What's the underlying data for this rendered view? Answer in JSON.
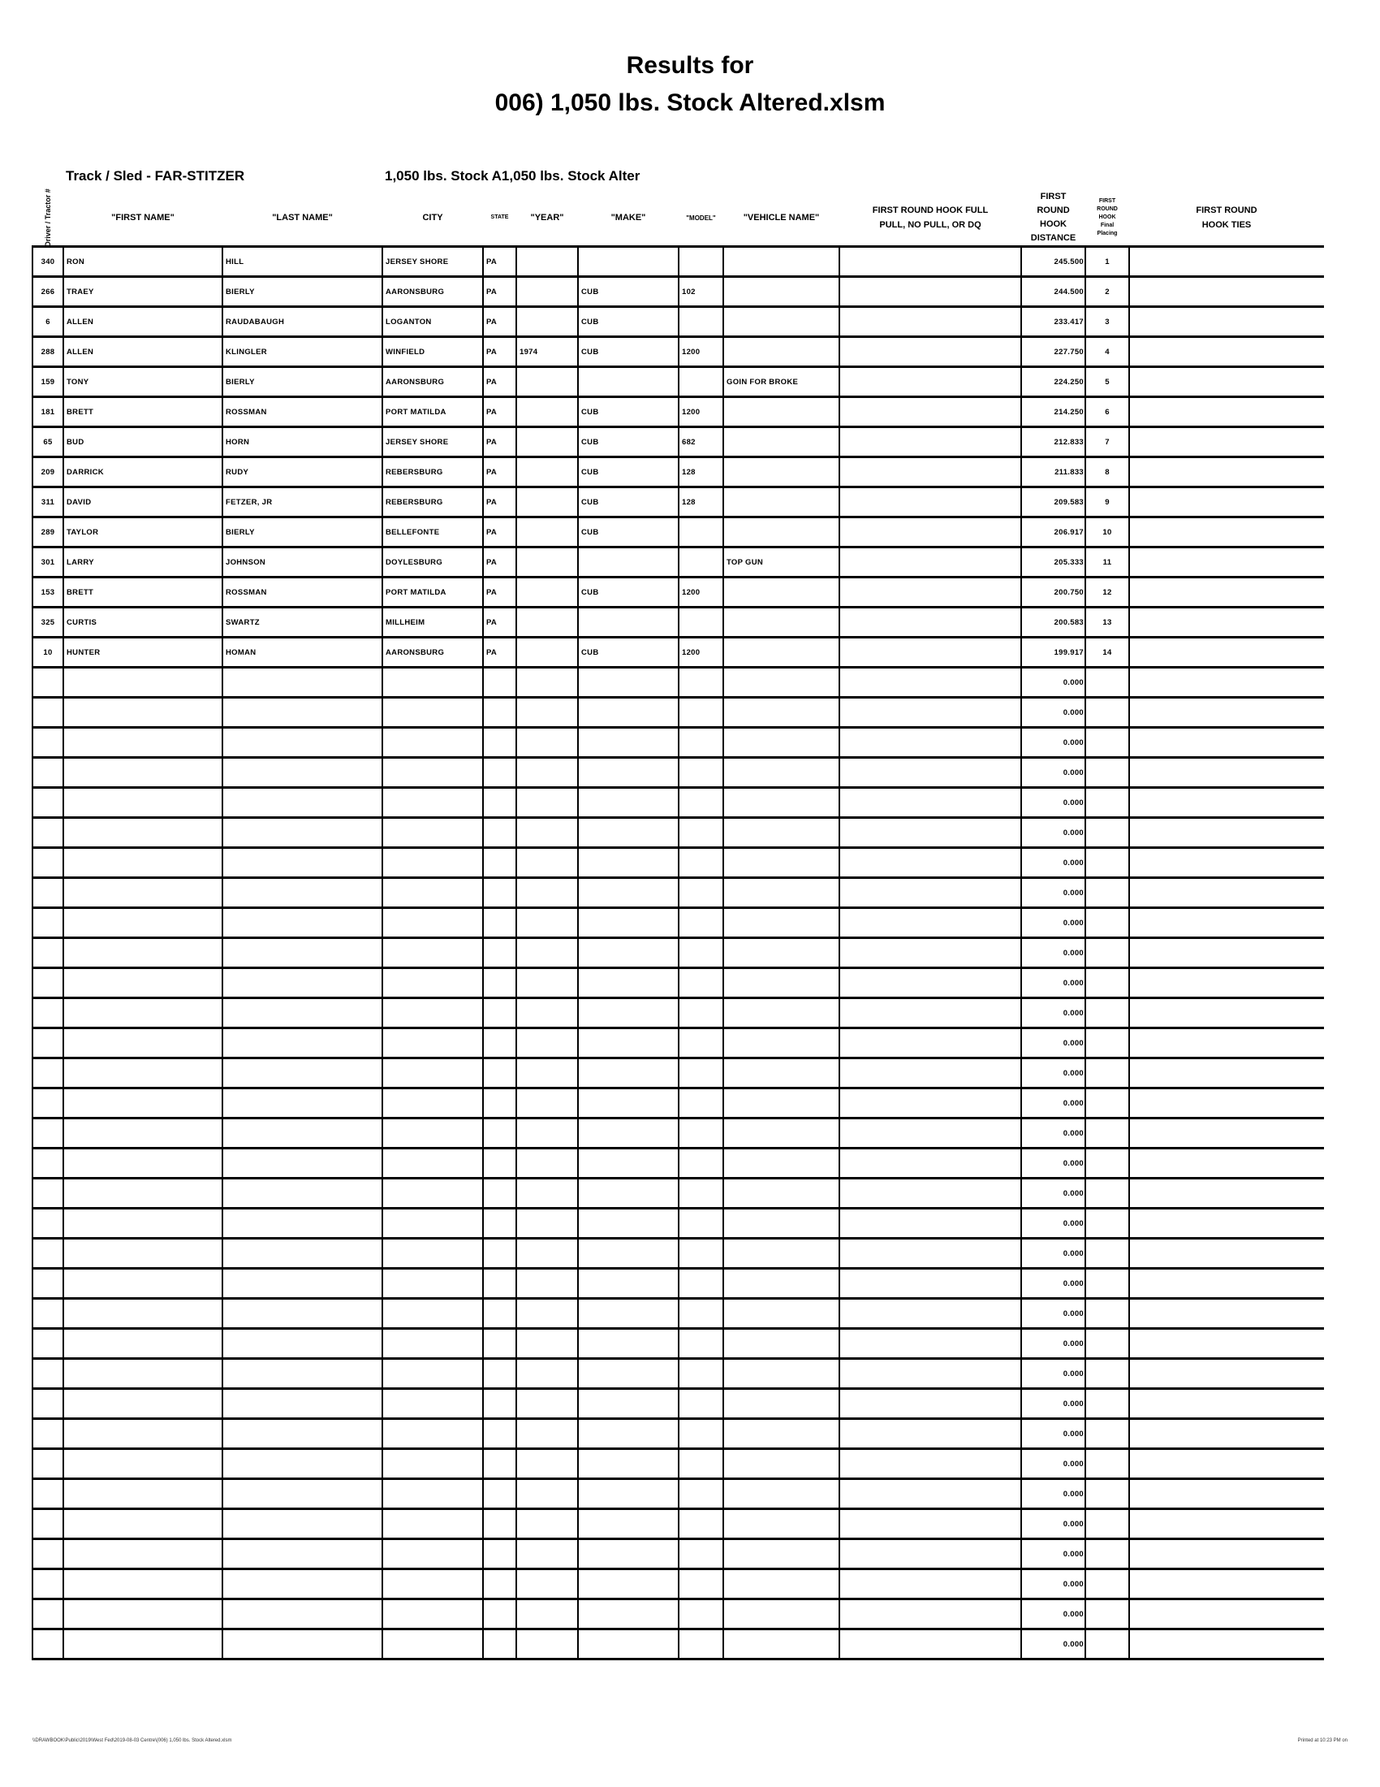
{
  "title_line1": "Results for",
  "title_line2": "006) 1,050 lbs. Stock Altered.xlsm",
  "track_sled": "Track / Sled - FAR-STITZER",
  "class_label": "1,050 lbs. Stock A1,050 lbs. Stock Alter",
  "columns": [
    "Driver / Tractor #",
    "\"FIRST NAME\"",
    "\"LAST NAME\"",
    "CITY",
    "STATE",
    "\"YEAR\"",
    "\"MAKE\"",
    "\"MODEL\"",
    "\"VEHICLE NAME\"",
    "FIRST ROUND HOOK FULL PULL, NO PULL, OR DQ",
    "FIRST ROUND HOOK DISTANCE",
    "FIRST ROUND HOOK Final Placing",
    "FIRST ROUND HOOK TIES"
  ],
  "rows": [
    [
      "340",
      "RON",
      "HILL",
      "JERSEY SHORE",
      "PA",
      "",
      "",
      "",
      "",
      "",
      "245.500",
      "1",
      ""
    ],
    [
      "266",
      "TRAEY",
      "BIERLY",
      "AARONSBURG",
      "PA",
      "",
      "CUB",
      "102",
      "",
      "",
      "244.500",
      "2",
      ""
    ],
    [
      "6",
      "ALLEN",
      "RAUDABAUGH",
      "LOGANTON",
      "PA",
      "",
      "CUB",
      "",
      "",
      "",
      "233.417",
      "3",
      ""
    ],
    [
      "288",
      "ALLEN",
      "KLINGLER",
      "WINFIELD",
      "PA",
      "1974",
      "CUB",
      "1200",
      "",
      "",
      "227.750",
      "4",
      ""
    ],
    [
      "159",
      "TONY",
      "BIERLY",
      "AARONSBURG",
      "PA",
      "",
      "",
      "",
      "GOIN FOR BROKE",
      "",
      "224.250",
      "5",
      ""
    ],
    [
      "181",
      "BRETT",
      "ROSSMAN",
      "PORT MATILDA",
      "PA",
      "",
      "CUB",
      "1200",
      "",
      "",
      "214.250",
      "6",
      ""
    ],
    [
      "65",
      "BUD",
      "HORN",
      "JERSEY SHORE",
      "PA",
      "",
      "CUB",
      "682",
      "",
      "",
      "212.833",
      "7",
      ""
    ],
    [
      "209",
      "DARRICK",
      "RUDY",
      "REBERSBURG",
      "PA",
      "",
      "CUB",
      "128",
      "",
      "",
      "211.833",
      "8",
      ""
    ],
    [
      "311",
      "DAVID",
      "FETZER, JR",
      "REBERSBURG",
      "PA",
      "",
      "CUB",
      "128",
      "",
      "",
      "209.583",
      "9",
      ""
    ],
    [
      "289",
      "TAYLOR",
      "BIERLY",
      "BELLEFONTE",
      "PA",
      "",
      "CUB",
      "",
      "",
      "",
      "206.917",
      "10",
      ""
    ],
    [
      "301",
      "LARRY",
      "JOHNSON",
      "DOYLESBURG",
      "PA",
      "",
      "",
      "",
      "TOP GUN",
      "",
      "205.333",
      "11",
      ""
    ],
    [
      "153",
      "BRETT",
      "ROSSMAN",
      "PORT MATILDA",
      "PA",
      "",
      "CUB",
      "1200",
      "",
      "",
      "200.750",
      "12",
      ""
    ],
    [
      "325",
      "CURTIS",
      "SWARTZ",
      "MILLHEIM",
      "PA",
      "",
      "",
      "",
      "",
      "",
      "200.583",
      "13",
      ""
    ],
    [
      "10",
      "HUNTER",
      "HOMAN",
      "AARONSBURG",
      "PA",
      "",
      "CUB",
      "1200",
      "",
      "",
      "199.917",
      "14",
      ""
    ]
  ],
  "empty_rows_distance": [
    "0.000",
    "0.000",
    "0.000",
    "0.000",
    "0.000",
    "0.000",
    "0.000",
    "0.000",
    "0.000",
    "0.000",
    "0.000",
    "0.000",
    "0.000",
    "0.000",
    "0.000",
    "0.000",
    "0.000",
    "0.000",
    "0.000",
    "0.000",
    "0.000",
    "0.000",
    "0.000",
    "0.000",
    "0.000",
    "0.000",
    "0.000",
    "0.000",
    "0.000",
    "0.000",
    "0.000",
    "0.000",
    "0.000"
  ],
  "footer_left": "\\\\DRAWBOOK\\Public\\2019\\West Fed\\2019-08-03 Centre\\(006) 1,050 lbs. Stock Altered.xlsm",
  "footer_right": "Printed at 10:23 PM on"
}
